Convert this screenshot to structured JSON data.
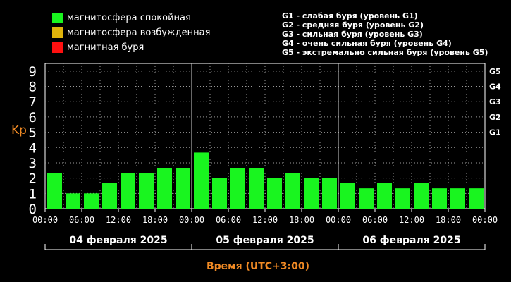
{
  "legend": [
    {
      "label": "магнитосфера спокойная",
      "color": "#19f51f"
    },
    {
      "label": "магнитосфера возбужденная",
      "color": "#e0b40b"
    },
    {
      "label": "магнитная буря",
      "color": "#ff1010"
    }
  ],
  "storm_levels": [
    "G1 - слабая буря (уровень G1)",
    "G2 - средняя буря (уровень G2)",
    "G3 - сильная буря (уровень G3)",
    "G4 - очень сильная буря (уровень G4)",
    "G5 - экстремально сильная буря (уровень G5)"
  ],
  "chart_data": {
    "type": "bar",
    "ylabel": "Kp",
    "xlabel": "Время (UTC+3:00)",
    "ylim": [
      0,
      9.5
    ],
    "y_ticks": [
      "0",
      "1",
      "2",
      "3",
      "4",
      "5",
      "6",
      "7",
      "8",
      "9"
    ],
    "g_ticks": [
      {
        "value": 5,
        "label": "G1"
      },
      {
        "value": 6,
        "label": "G2"
      },
      {
        "value": 7,
        "label": "G3"
      },
      {
        "value": 8,
        "label": "G4"
      },
      {
        "value": 9,
        "label": "G5"
      }
    ],
    "time_ticks": [
      "00:00",
      "06:00",
      "12:00",
      "18:00",
      "00:00",
      "06:00",
      "12:00",
      "18:00",
      "00:00",
      "06:00",
      "12:00",
      "18:00",
      "00:00"
    ],
    "days": [
      "04 февраля 2025",
      "05 февраля 2025",
      "06 февраля 2025"
    ],
    "values": [
      2.33,
      1.0,
      1.0,
      1.67,
      2.33,
      2.33,
      2.67,
      2.67,
      3.67,
      2.0,
      2.67,
      2.67,
      2.0,
      2.33,
      2.0,
      2.0,
      1.67,
      1.33,
      1.67,
      1.33,
      1.67,
      1.33,
      1.33,
      1.33
    ],
    "bar_color": "#19f51f",
    "grid": true,
    "axis_color": "#ffffff",
    "label_color": "#f08a24"
  }
}
